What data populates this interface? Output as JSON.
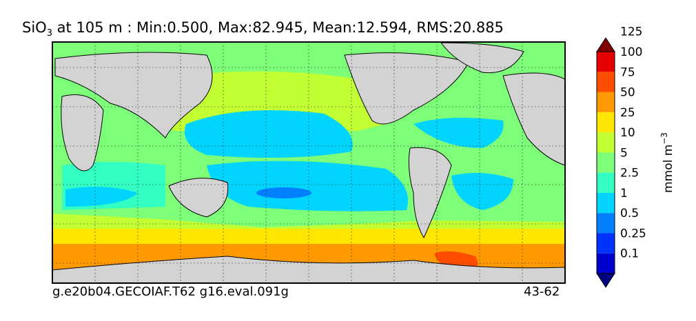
{
  "title": {
    "species": "SiO",
    "subscript": "3",
    "rest": " at 105 m : Min:0.500, Max:82.945, Mean:12.594, RMS:20.885"
  },
  "footer": {
    "left": "g.e20b04.GECOIAF.T62 g16.eval.091g",
    "right": "43-62"
  },
  "colorbar": {
    "unit_label": "mmol m",
    "unit_exponent": "−3",
    "levels": [
      "0.1",
      "0.25",
      "0.5",
      "1",
      "2.5",
      "5",
      "10",
      "25",
      "50",
      "75",
      "100",
      "125"
    ],
    "colors": [
      "#00007f",
      "#0000cc",
      "#0033ff",
      "#0080ff",
      "#00d4ff",
      "#33ffc2",
      "#7dff7a",
      "#c2ff33",
      "#ffe600",
      "#ff9900",
      "#ff4d00",
      "#e60000",
      "#7f0000"
    ]
  },
  "map": {
    "land_color": "#d3d3d3",
    "regions": [
      {
        "name": "southern-ocean",
        "level_index": 9
      },
      {
        "name": "antarctic-band",
        "level_index": 8
      },
      {
        "name": "southern-subtropical",
        "level_index": 7
      },
      {
        "name": "south-pacific-gyre",
        "level_index": 4
      },
      {
        "name": "north-pacific-gyre",
        "level_index": 4
      },
      {
        "name": "north-atlantic-gyre",
        "level_index": 4
      },
      {
        "name": "indian-ocean",
        "level_index": 5
      },
      {
        "name": "north-pacific",
        "level_index": 7
      },
      {
        "name": "arctic",
        "level_index": 6
      },
      {
        "name": "south-pacific-minimum",
        "level_index": 3
      },
      {
        "name": "weddell-max",
        "level_index": 10
      }
    ]
  }
}
